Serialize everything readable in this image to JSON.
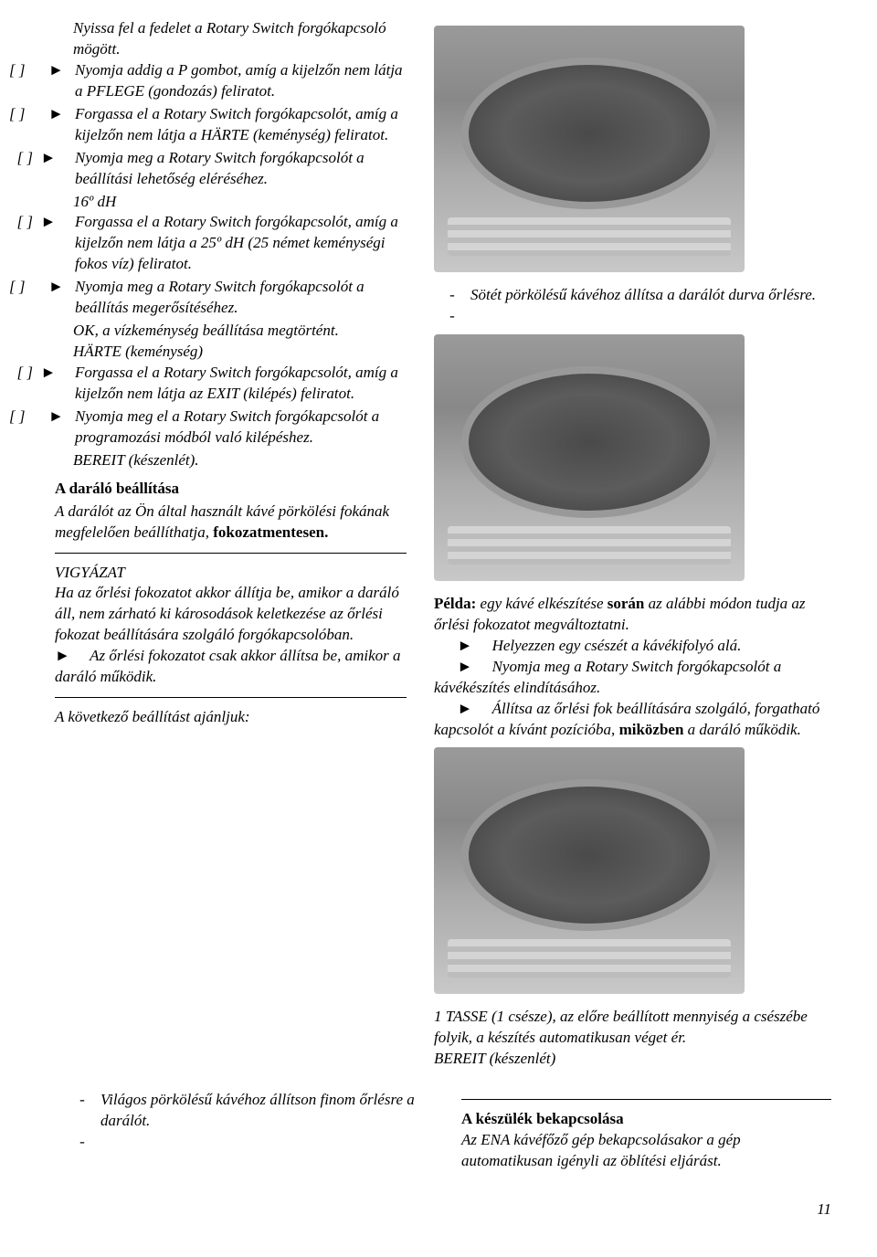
{
  "left": {
    "intro1": "Nyissa fel a fedelet a Rotary Switch forgókapcsoló mögött.",
    "steps": [
      {
        "marker": "[ ]      ►",
        "text": "Nyomja addig a P gombot, amíg a kijelzőn nem látja a PFLEGE (gondozás) feliratot."
      },
      {
        "marker": "[ ]      ►",
        "text": "Forgassa el a Rotary Switch forgókapcsolót, amíg a kijelzőn nem látja a HÄRTE (keménység) feliratot."
      },
      {
        "marker": "  [ ]  ►",
        "text": "Nyomja meg a Rotary Switch forgókapcsolót a beállítási lehetőség eléréséhez."
      },
      {
        "marker": "",
        "text": "16º dH",
        "indentOnly": true
      },
      {
        "marker": "  [ ]  ►",
        "text": "Forgassa el a Rotary Switch forgókapcsolót, amíg a kijelzőn nem látja a 25º dH (25 német keménységi fokos víz) feliratot."
      },
      {
        "marker": "[ ]      ►",
        "text": "Nyomja meg a Rotary Switch forgókapcsolót a beállítás megerősítéséhez."
      },
      {
        "marker": "",
        "text": "OK, a vízkeménység beállítása megtörtént.",
        "indentOnly": true
      },
      {
        "marker": "",
        "text": "HÄRTE (keménység)",
        "indentOnly": true
      },
      {
        "marker": "  [ ]  ►",
        "text": "Forgassa el a Rotary Switch forgókapcsolót, amíg a kijelzőn nem látja az EXIT (kilépés) feliratot."
      },
      {
        "marker": "[ ]      ►",
        "text": "Nyomja meg el a Rotary Switch forgókapcsolót a programozási módból való kilépéshez."
      },
      {
        "marker": "",
        "text": "BEREIT (készenlét).",
        "indentOnly": true
      }
    ],
    "sectionTitle": "A daráló beállítása",
    "section1_a": "A darálót az Ön által használt kávé pörkölési fokának megfelelően beállíthatja, ",
    "section1_b": "fokozatmentesen.",
    "warn_title": "VIGYÁZAT",
    "warn_text": "Ha az őrlési fokozatot akkor állítja be, amikor a daráló áll, nem zárható ki károsodások keletkezése az őrlési fokozat beállítására szolgáló forgókapcsolóban.",
    "warn_arrow": "►",
    "warn_bullet": "Az őrlési fokozatot csak akkor állítsa be, amikor a daráló működik.",
    "setting_next": "A következő beállítást ajánljuk:"
  },
  "right": {
    "note1": "Sötét pörkölésű kávéhoz állítsa a darálót durva őrlésre.",
    "example_lead": "Példa: ",
    "example_a": "egy kávé elkészítése ",
    "example_b": "során ",
    "example_c": "az alábbi módon tudja az őrlési fokozatot megváltoztatni.",
    "ex_step1": "Helyezzen egy csészét a kávékifolyó alá.",
    "ex_step2": "Nyomja meg a Rotary Switch forgókapcsolót a kávékészítés elindításához.",
    "ex_step3a": "Állítsa az őrlési fok beállítására szolgáló, forgatható kapcsolót a kívánt pozícióba, ",
    "ex_step3b": "miközben ",
    "ex_step3c": "a daráló működik.",
    "result": "1 TASSE (1 csésze), az előre beállított mennyiség a csészébe folyik, a készítés automatikusan véget ér.",
    "bereit": "BEREIT (készenlét)"
  },
  "footer": {
    "light_roast": "Világos pörkölésű kávéhoz állítson finom őrlésre a darálót.",
    "power_title": "A készülék bekapcsolása",
    "power_text": "Az ENA kávéfőző gép bekapcsolásakor a gép automatikusan igényli az öblítési eljárást."
  },
  "pagenum": "11"
}
